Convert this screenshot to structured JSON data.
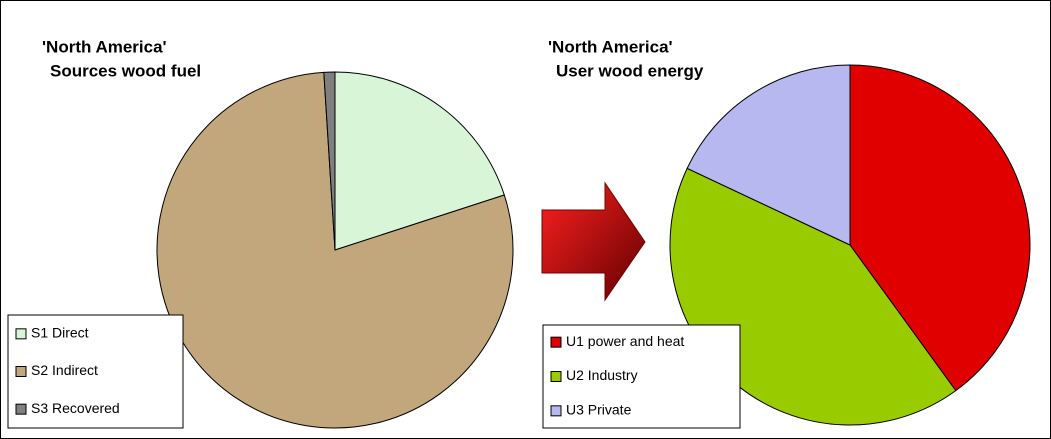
{
  "chart_data": [
    {
      "type": "pie",
      "title": "'North America'",
      "subtitle": "Sources wood fuel",
      "categories": [
        "S1 Direct",
        "S2 Indirect",
        "S3 Recovered"
      ],
      "values": [
        20,
        79,
        1
      ],
      "colors": [
        "#d8f5d8",
        "#c2a77c",
        "#7f7f7f"
      ]
    },
    {
      "type": "pie",
      "title": "'North America'",
      "subtitle": "User wood energy",
      "categories": [
        "U1 power and heat",
        "U2 Industry",
        "U3 Private"
      ],
      "values": [
        40,
        42,
        18
      ],
      "colors": [
        "#e00000",
        "#99cc00",
        "#b8b8f0"
      ]
    }
  ]
}
